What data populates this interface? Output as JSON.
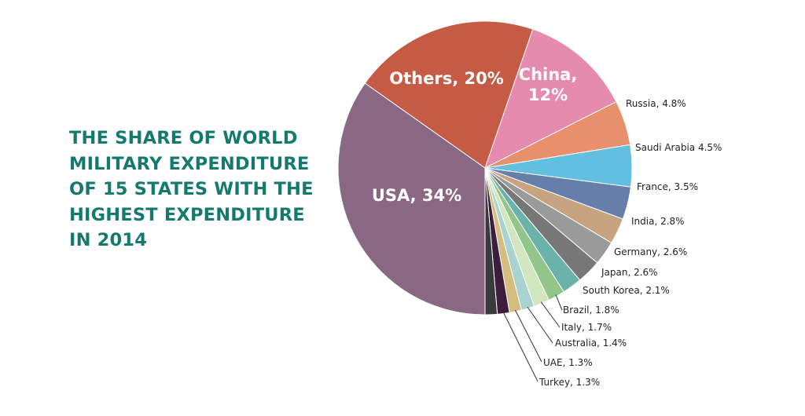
{
  "title_lines": [
    "THE SHARE OF WORLD",
    "MILITARY EXPENDITURE",
    "OF 15 STATES WITH THE",
    "HIGHEST EXPENDITURE",
    "IN 2014"
  ],
  "chart_data": {
    "type": "pie",
    "title": "THE SHARE OF WORLD MILITARY EXPENDITURE OF 15 STATES WITH THE HIGHEST EXPENDITURE IN 2014",
    "unit": "%",
    "slices": [
      {
        "label": "USA, 34%",
        "value": 34,
        "color": "#8a6782",
        "style": "inner"
      },
      {
        "label": "Others, 20%",
        "value": 20,
        "color": "#c55a45",
        "style": "inner"
      },
      {
        "label": "China, 12%",
        "label_lines": [
          "China,",
          "12%"
        ],
        "value": 12,
        "color": "#e68aae",
        "style": "inner"
      },
      {
        "label": "Russia, 4.8%",
        "value": 4.8,
        "color": "#e8906b",
        "style": "outer"
      },
      {
        "label": "Saudi Arabia 4.5%",
        "value": 4.5,
        "color": "#63bfe0",
        "style": "outer"
      },
      {
        "label": "France, 3.5%",
        "value": 3.5,
        "color": "#667faa",
        "style": "outer"
      },
      {
        "label": "India, 2.8%",
        "value": 2.8,
        "color": "#c8a382",
        "style": "outer"
      },
      {
        "label": "Germany, 2.6%",
        "value": 2.6,
        "color": "#9a9a9a",
        "style": "outer"
      },
      {
        "label": "Japan, 2.6%",
        "value": 2.6,
        "color": "#777777",
        "style": "outer"
      },
      {
        "label": "South Korea, 2.1%",
        "value": 2.1,
        "color": "#6bb3aa",
        "style": "outer"
      },
      {
        "label": "Brazil, 1.8%",
        "value": 1.8,
        "color": "#92c58a",
        "style": "leader"
      },
      {
        "label": "Italy, 1.7%",
        "value": 1.7,
        "color": "#d2e6bf",
        "style": "leader"
      },
      {
        "label": "Australia, 1.4%",
        "value": 1.4,
        "color": "#a8d3d0",
        "style": "leader"
      },
      {
        "label": "UAE, 1.3%",
        "value": 1.3,
        "color": "#d4bd7e",
        "style": "leader"
      },
      {
        "label": "Turkey, 1.3%",
        "value": 1.3,
        "color": "#3d1d3d",
        "style": "leader"
      },
      {
        "label": "",
        "value": 1.3,
        "color": "#3a3a3a",
        "style": "none"
      }
    ]
  }
}
